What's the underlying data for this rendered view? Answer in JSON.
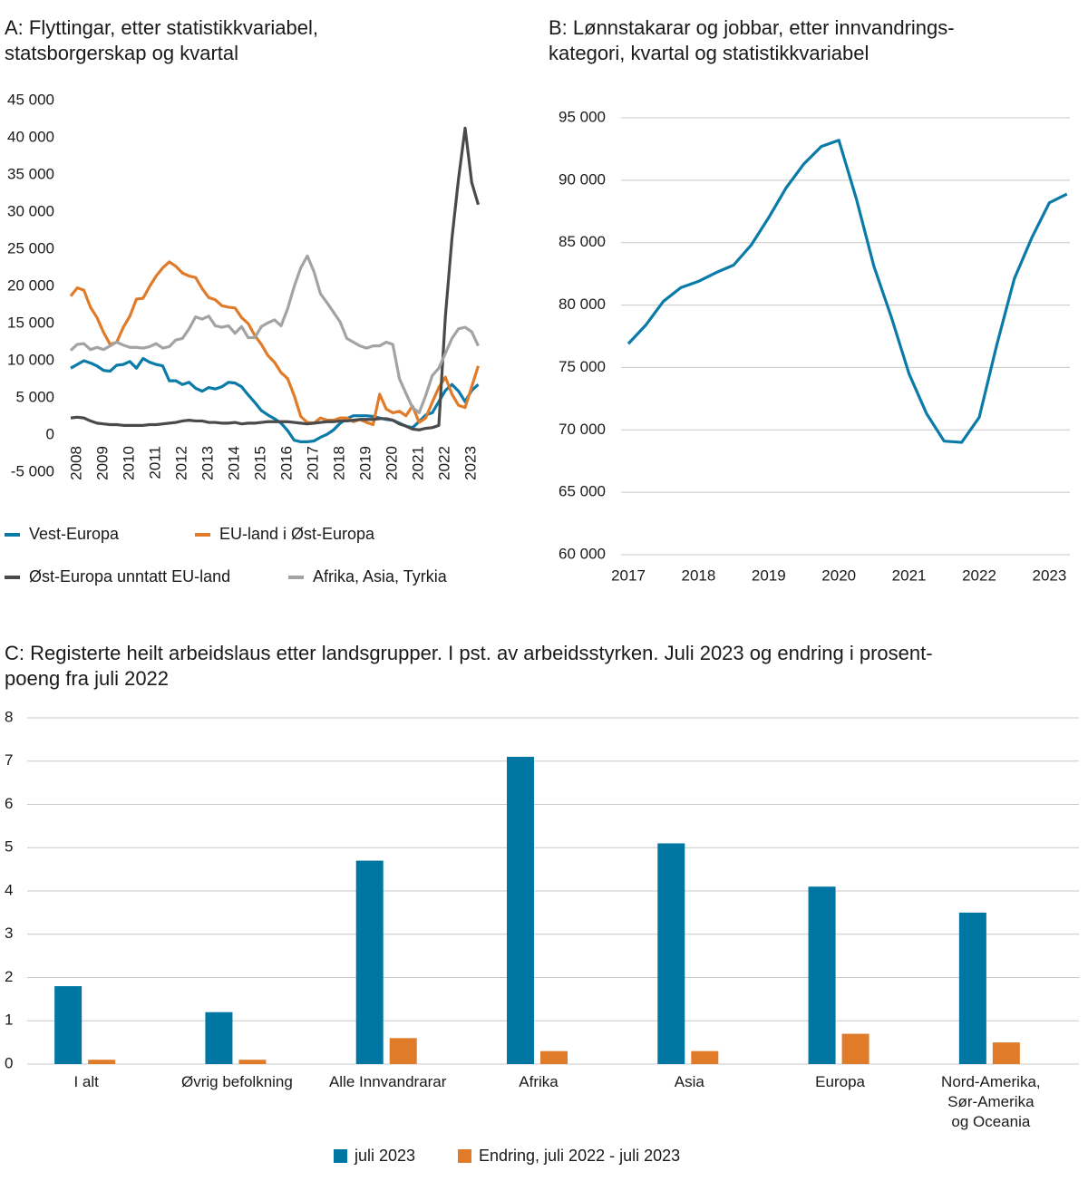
{
  "chart_data": [
    {
      "type": "line",
      "title": "A:  Flyttingar, etter statistikkvariabel,\nstatsborgerskap og kvartal",
      "categories": [
        null,
        "2008",
        null,
        null,
        null,
        "2009",
        null,
        null,
        null,
        "2010",
        null,
        null,
        null,
        "2011",
        null,
        null,
        null,
        "2012",
        null,
        null,
        null,
        "2013",
        null,
        null,
        null,
        "2014",
        null,
        null,
        null,
        "2015",
        null,
        null,
        null,
        "2016",
        null,
        null,
        null,
        "2017",
        null,
        null,
        null,
        "2018",
        null,
        null,
        null,
        "2019",
        null,
        null,
        null,
        "2020",
        null,
        null,
        null,
        "2021",
        null,
        null,
        null,
        "2022",
        null,
        null,
        null,
        "2023",
        null
      ],
      "series": [
        {
          "name": "Vest-Europa",
          "color": "#0a7aa8",
          "values": [
            9000,
            9500,
            10000,
            9700,
            9300,
            8700,
            8600,
            9400,
            9500,
            9900,
            9000,
            10300,
            9800,
            9500,
            9300,
            7300,
            7300,
            6800,
            7100,
            6300,
            5900,
            6400,
            6200,
            6500,
            7100,
            7000,
            6500,
            5400,
            4400,
            3300,
            2700,
            2200,
            1600,
            600,
            -700,
            -900,
            -900,
            -800,
            -300,
            100,
            700,
            1600,
            2200,
            2600,
            2600,
            2600,
            2500,
            2300,
            2100,
            2000,
            1600,
            1200,
            1000,
            1800,
            2700,
            3000,
            4500,
            6000,
            6800,
            5900,
            4500,
            6000,
            6800
          ]
        },
        {
          "name": "EU-land i Øst-Europa",
          "color": "#e07b2a",
          "values": [
            18700,
            19800,
            19500,
            17200,
            15800,
            13800,
            12200,
            12500,
            14500,
            16000,
            18300,
            18400,
            20000,
            21400,
            22500,
            23300,
            22700,
            21800,
            21400,
            21200,
            19700,
            18500,
            18200,
            17400,
            17200,
            17100,
            15800,
            15000,
            13400,
            12200,
            10700,
            9800,
            8400,
            7600,
            5300,
            2500,
            1700,
            1600,
            2300,
            2000,
            2000,
            2300,
            2300,
            1800,
            2100,
            1700,
            1400,
            5500,
            3500,
            3000,
            3200,
            2600,
            3900,
            1700,
            2300,
            4400,
            6400,
            7800,
            5500,
            4000,
            3700,
            6500,
            9300
          ]
        },
        {
          "name": "Øst-Europa unntatt EU-land",
          "color": "#4a4a4a",
          "values": [
            2300,
            2400,
            2300,
            1900,
            1600,
            1500,
            1400,
            1400,
            1300,
            1300,
            1300,
            1300,
            1400,
            1400,
            1500,
            1600,
            1700,
            1900,
            2000,
            1900,
            1900,
            1700,
            1700,
            1600,
            1600,
            1700,
            1500,
            1600,
            1600,
            1700,
            1800,
            1800,
            1800,
            1800,
            1700,
            1600,
            1500,
            1600,
            1700,
            1800,
            1800,
            1900,
            1900,
            2000,
            2100,
            2100,
            2100,
            2200,
            2200,
            2000,
            1500,
            1200,
            800,
            700,
            900,
            1000,
            1300,
            16000,
            26500,
            34500,
            41300,
            34000,
            31000
          ]
        },
        {
          "name": "Afrika, Asia, Tyrkia",
          "color": "#a3a3a3",
          "values": [
            11400,
            12200,
            12300,
            11500,
            11800,
            11500,
            12000,
            12500,
            12100,
            11800,
            11800,
            11700,
            11900,
            12300,
            11700,
            11900,
            12800,
            13000,
            14300,
            15900,
            15600,
            16000,
            14700,
            14500,
            14700,
            13700,
            14600,
            13100,
            13100,
            14600,
            15100,
            15500,
            14700,
            17000,
            20000,
            22500,
            24100,
            22000,
            19000,
            17800,
            16500,
            15200,
            13000,
            12500,
            12000,
            11700,
            12000,
            12000,
            12500,
            12200,
            7600,
            5600,
            3700,
            3000,
            5300,
            8000,
            9000,
            11000,
            13000,
            14300,
            14500,
            13900,
            12000
          ]
        }
      ],
      "ylim": [
        -5000,
        45000
      ],
      "yticks": [
        {
          "value": -5000,
          "label": "-5 000"
        },
        0,
        {
          "value": 5000,
          "label": "5 000"
        },
        {
          "value": 10000,
          "label": "10 000"
        },
        {
          "value": 15000,
          "label": "15 000"
        },
        {
          "value": 20000,
          "label": "20 000"
        },
        {
          "value": 25000,
          "label": "25 000"
        },
        {
          "value": 30000,
          "label": "30 000"
        },
        {
          "value": 35000,
          "label": "35 000"
        },
        {
          "value": 40000,
          "label": "40 000"
        },
        {
          "value": 45000,
          "label": "45 000"
        }
      ],
      "grid": false
    },
    {
      "type": "line",
      "title": "B:  Lønnstakarar og jobbar, etter innvandrings-\nkategori, kvartal og statistikkvariabel",
      "categories": [
        "2017",
        null,
        null,
        null,
        "2018",
        null,
        null,
        null,
        "2019",
        null,
        null,
        null,
        "2020",
        null,
        null,
        null,
        "2021",
        null,
        null,
        null,
        "2022",
        null,
        null,
        null,
        "2023",
        null
      ],
      "values": [
        76900,
        78400,
        80300,
        81400,
        81900,
        82600,
        83200,
        84800,
        87000,
        89400,
        91300,
        92700,
        93200,
        88500,
        83100,
        79000,
        74500,
        71300,
        69100,
        69000,
        71000,
        76800,
        82100,
        85400,
        88200,
        88900
      ],
      "color": "#0a7aa8",
      "ylim": [
        60000,
        95000
      ],
      "yticks": [
        {
          "value": 60000,
          "label": "60 000"
        },
        {
          "value": 65000,
          "label": "65 000"
        },
        {
          "value": 70000,
          "label": "70 000"
        },
        {
          "value": 75000,
          "label": "75 000"
        },
        {
          "value": 80000,
          "label": "80 000"
        },
        {
          "value": 85000,
          "label": "85 000"
        },
        {
          "value": 90000,
          "label": "90 000"
        },
        {
          "value": 95000,
          "label": "95 000"
        }
      ],
      "grid": true
    },
    {
      "type": "bar",
      "title": "C:  Registerte heilt arbeidslaus etter landsgrupper. I pst. av arbeidsstyrken. Juli 2023 og endring i prosent-\npoeng fra juli 2022",
      "categories": [
        "I alt",
        "Øvrig befolkning",
        "Alle Innvandrarar",
        "Afrika",
        "Asia",
        "Europa",
        "Nord-Amerika,\nSør-Amerika\nog Oceania"
      ],
      "series": [
        {
          "name": "juli 2023",
          "color": "#0076a3",
          "values": [
            1.8,
            1.2,
            4.7,
            7.1,
            5.1,
            4.1,
            3.5
          ]
        },
        {
          "name": "Endring, juli 2022 - juli 2023",
          "color": "#e07b2a",
          "values": [
            0.1,
            0.1,
            0.6,
            0.3,
            0.3,
            0.7,
            0.5
          ]
        }
      ],
      "ylim": [
        0,
        8
      ],
      "yticks": [
        0,
        1,
        2,
        3,
        4,
        5,
        6,
        7,
        8
      ],
      "grid": true
    }
  ]
}
